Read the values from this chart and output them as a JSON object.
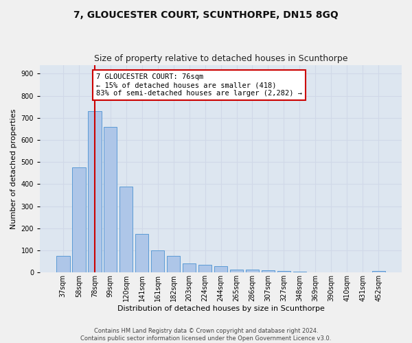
{
  "title": "7, GLOUCESTER COURT, SCUNTHORPE, DN15 8GQ",
  "subtitle": "Size of property relative to detached houses in Scunthorpe",
  "xlabel": "Distribution of detached houses by size in Scunthorpe",
  "ylabel": "Number of detached properties",
  "footer1": "Contains HM Land Registry data © Crown copyright and database right 2024.",
  "footer2": "Contains public sector information licensed under the Open Government Licence v3.0.",
  "bar_labels": [
    "37sqm",
    "58sqm",
    "78sqm",
    "99sqm",
    "120sqm",
    "141sqm",
    "161sqm",
    "182sqm",
    "203sqm",
    "224sqm",
    "244sqm",
    "265sqm",
    "286sqm",
    "307sqm",
    "327sqm",
    "348sqm",
    "369sqm",
    "390sqm",
    "410sqm",
    "431sqm",
    "452sqm"
  ],
  "bar_values": [
    75,
    475,
    730,
    660,
    390,
    175,
    100,
    75,
    42,
    35,
    28,
    13,
    13,
    11,
    8,
    5,
    0,
    0,
    0,
    0,
    8
  ],
  "bar_color": "#aec6e8",
  "bar_edge_color": "#5b9bd5",
  "annotation_line1": "7 GLOUCESTER COURT: 76sqm",
  "annotation_line2": "← 15% of detached houses are smaller (418)",
  "annotation_line3": "83% of semi-detached houses are larger (2,282) →",
  "annotation_box_color": "#ffffff",
  "annotation_box_edge": "#cc0000",
  "vline_color": "#cc0000",
  "ylim": [
    0,
    940
  ],
  "yticks": [
    0,
    100,
    200,
    300,
    400,
    500,
    600,
    700,
    800,
    900
  ],
  "grid_color": "#d0d8e8",
  "bg_color": "#dde6f0",
  "fig_bg_color": "#f0f0f0",
  "title_fontsize": 10,
  "subtitle_fontsize": 9,
  "ylabel_fontsize": 8,
  "xlabel_fontsize": 8,
  "tick_fontsize": 7,
  "footer_fontsize": 6,
  "annotation_fontsize": 7.5
}
